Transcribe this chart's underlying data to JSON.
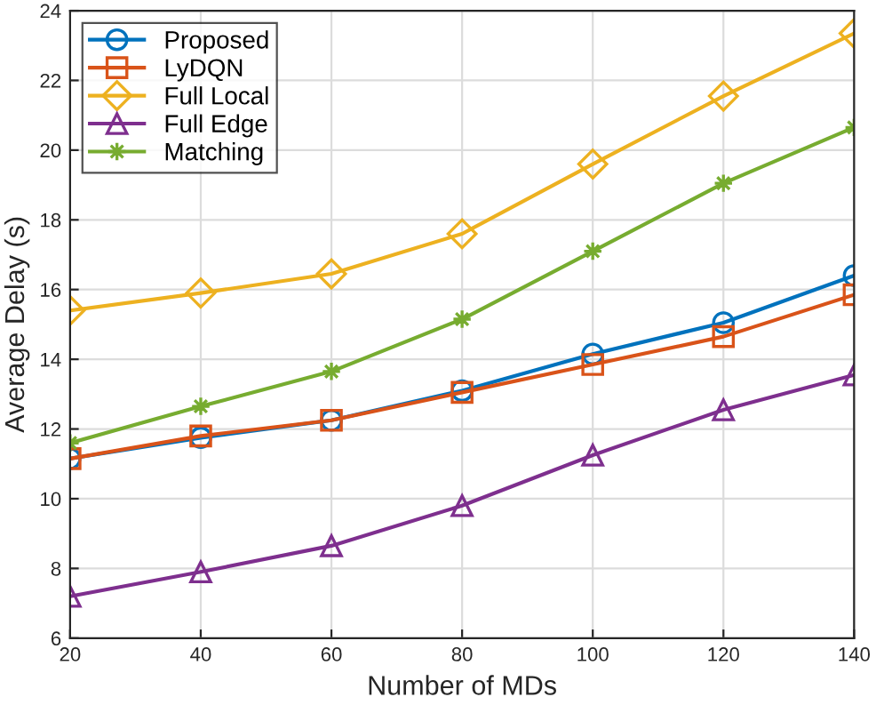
{
  "chart_data": {
    "type": "line",
    "xlabel": "Number of MDs",
    "ylabel": "Average Delay (s)",
    "x": [
      20,
      40,
      60,
      80,
      100,
      120,
      140
    ],
    "xlim": [
      20,
      140
    ],
    "xticks": [
      20,
      40,
      60,
      80,
      100,
      120,
      140
    ],
    "ylim": [
      6,
      24
    ],
    "yticks": [
      6,
      8,
      10,
      12,
      14,
      16,
      18,
      20,
      22,
      24
    ],
    "grid": true,
    "legend": "top left",
    "line_style": "solid",
    "series": [
      {
        "name": "Proposed",
        "color": "#0072bd",
        "marker": "circle",
        "values": [
          11.15,
          11.75,
          12.25,
          13.1,
          14.15,
          15.05,
          16.4
        ]
      },
      {
        "name": "LyDQN",
        "color": "#d95319",
        "marker": "square",
        "values": [
          11.15,
          11.8,
          12.25,
          13.05,
          13.85,
          14.65,
          15.85
        ]
      },
      {
        "name": "Full Local",
        "color": "#edb120",
        "marker": "diamond",
        "values": [
          15.4,
          15.9,
          16.45,
          17.6,
          19.6,
          21.55,
          23.35
        ]
      },
      {
        "name": "Full Edge",
        "color": "#7e2f8e",
        "marker": "triangle",
        "values": [
          7.2,
          7.9,
          8.65,
          9.8,
          11.25,
          12.55,
          13.55
        ]
      },
      {
        "name": "Matching",
        "color": "#77ac30",
        "marker": "star",
        "values": [
          11.6,
          12.65,
          13.65,
          15.15,
          17.1,
          19.05,
          20.65
        ]
      }
    ]
  }
}
